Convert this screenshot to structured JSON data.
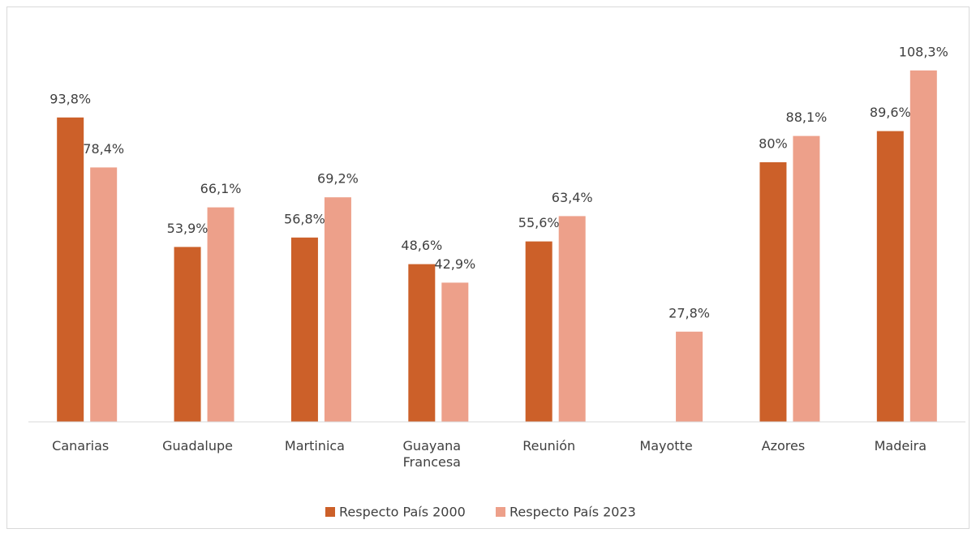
{
  "chart_data": {
    "type": "bar",
    "categories": [
      "Canarias",
      "Guadalupe",
      "Martinica",
      "Guayana Francesa",
      "Reunión",
      "Mayotte",
      "Azores",
      "Madeira"
    ],
    "series": [
      {
        "name": "Respecto País 2000",
        "color": "#cc6029",
        "values": [
          93.8,
          53.9,
          56.8,
          48.6,
          55.6,
          null,
          80,
          89.6
        ],
        "value_labels": [
          "93,8%",
          "53,9%",
          "56,8%",
          "48,6%",
          "55,6%",
          null,
          "80%",
          "89,6%"
        ]
      },
      {
        "name": "Respecto País 2023",
        "color": "#eda08a",
        "values": [
          78.4,
          66.1,
          69.2,
          42.9,
          63.4,
          27.8,
          88.1,
          108.3
        ],
        "value_labels": [
          "78,4%",
          "66,1%",
          "69,2%",
          "42,9%",
          "63,4%",
          "27,8%",
          "88,1%",
          "108,3%"
        ]
      }
    ],
    "ylim": [
      0,
      120
    ],
    "legend": "bottom"
  }
}
